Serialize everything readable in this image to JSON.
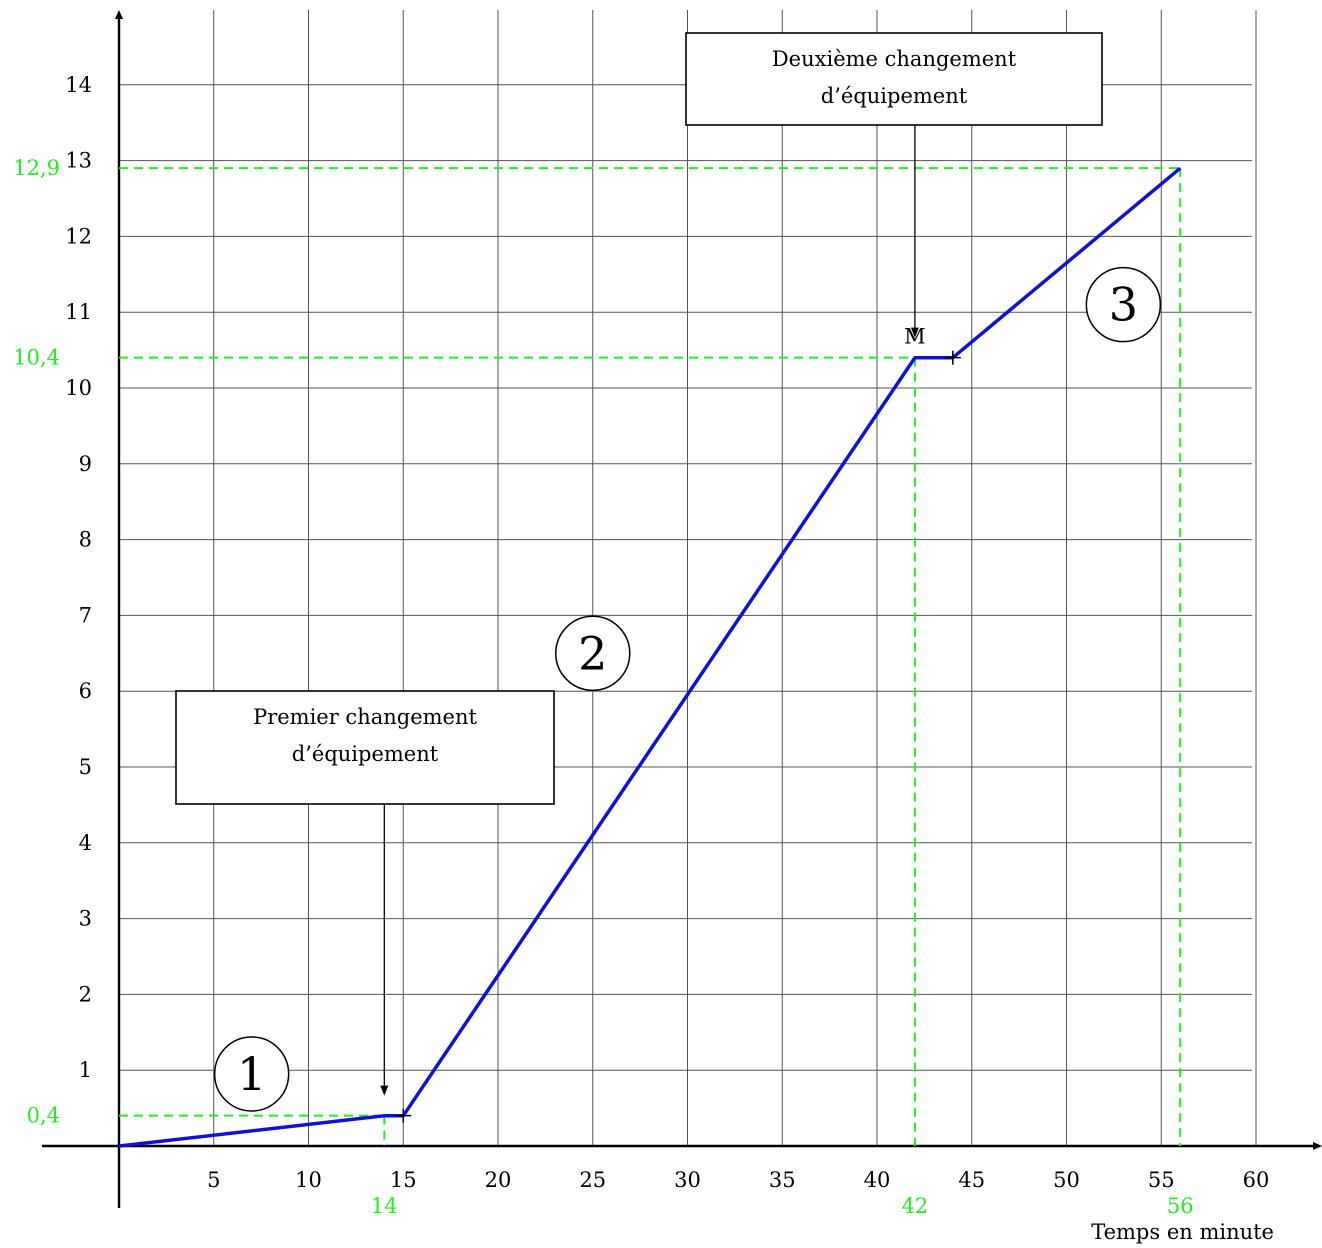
{
  "chart_data": {
    "type": "line",
    "xlabel": "Temps en minute",
    "ylabel": "",
    "xlim": [
      0,
      60
    ],
    "ylim": [
      0,
      14
    ],
    "grid": true,
    "x_ticks": [
      5,
      10,
      15,
      20,
      25,
      30,
      35,
      40,
      45,
      50,
      55,
      60
    ],
    "y_ticks": [
      1,
      2,
      3,
      4,
      5,
      6,
      7,
      8,
      9,
      10,
      11,
      12,
      13,
      14
    ],
    "series": [
      {
        "color": "#1010dd",
        "points": [
          [
            0,
            0
          ],
          [
            14,
            0.4
          ],
          [
            15,
            0.4
          ],
          [
            42,
            10.4
          ],
          [
            44,
            10.4
          ],
          [
            56,
            12.9
          ]
        ]
      }
    ],
    "reference_lines": [
      {
        "x": 14,
        "y": 0.4,
        "x_label": "14",
        "y_label": "0,4"
      },
      {
        "x": 42,
        "y": 10.4,
        "x_label": "42",
        "y_label": "10,4"
      },
      {
        "x": 56,
        "y": 12.9,
        "x_label": "56",
        "y_label": "12,9"
      }
    ],
    "reference_color": "#22ee22",
    "point_marker": {
      "label": "M",
      "x": 42,
      "y": 10.4
    },
    "tick_marks": [
      [
        15,
        0.4
      ],
      [
        44,
        10.4
      ]
    ],
    "callouts": [
      {
        "lines": [
          "Premier changement",
          "d’équipement"
        ],
        "arrow_to": [
          14,
          0.4
        ]
      },
      {
        "lines": [
          "Deuxième changement",
          "d’équipement"
        ],
        "arrow_to": [
          42,
          10.4
        ]
      }
    ],
    "circled_labels": [
      {
        "text": "1",
        "x": 7,
        "y": 0.95
      },
      {
        "text": "2",
        "x": 25,
        "y": 6.5
      },
      {
        "text": "3",
        "x": 53,
        "y": 11.1
      }
    ]
  }
}
